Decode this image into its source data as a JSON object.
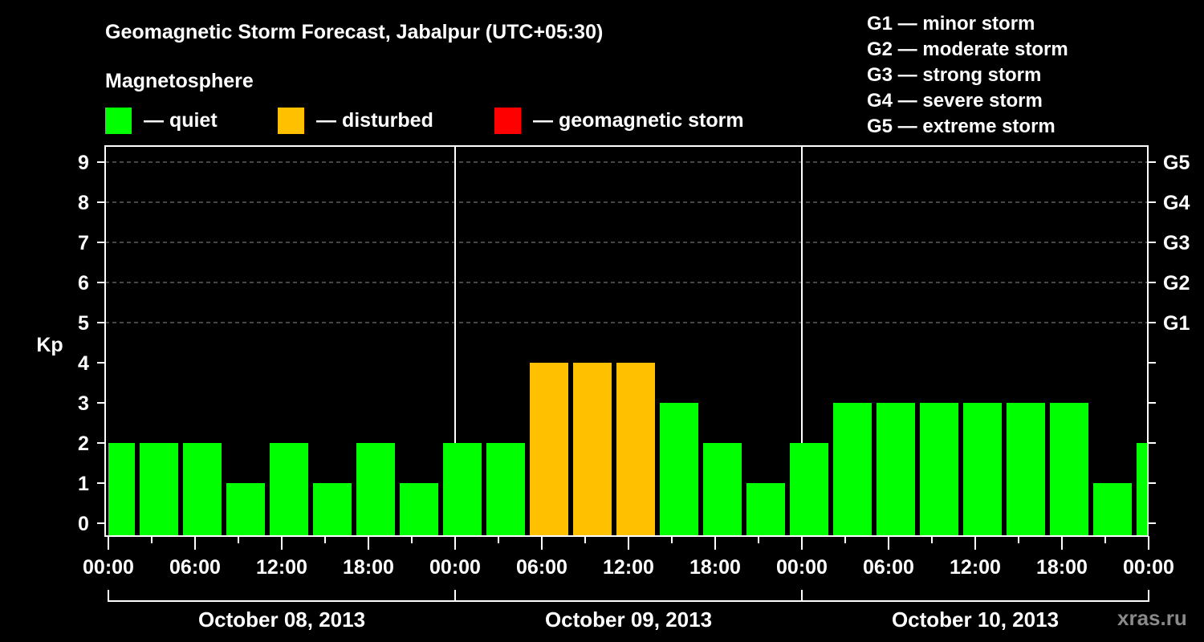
{
  "header": {
    "title": "Geomagnetic Storm Forecast, Jabalpur (UTC+05:30)",
    "subtitle": "Magnetosphere"
  },
  "legend": {
    "items": [
      {
        "label": "— quiet",
        "color": "#00ff00"
      },
      {
        "label": "— disturbed",
        "color": "#ffc000"
      },
      {
        "label": "— geomagnetic storm",
        "color": "#ff0000"
      }
    ]
  },
  "storm_scale": {
    "items": [
      "G1 — minor storm",
      "G2 — moderate storm",
      "G3 — strong storm",
      "G4 — severe storm",
      "G5 — extreme storm"
    ]
  },
  "watermark": "xras.ru",
  "chart_data": {
    "type": "bar",
    "title": "Geomagnetic Storm Forecast, Jabalpur (UTC+05:30)",
    "xlabel": "",
    "ylabel": "Kp",
    "ylim": [
      0,
      9
    ],
    "yticks": [
      0,
      1,
      2,
      3,
      4,
      5,
      6,
      7,
      8,
      9
    ],
    "right_axis_labels": {
      "5": "G1",
      "6": "G2",
      "7": "G3",
      "8": "G4",
      "9": "G5"
    },
    "grid": "dashed horizontal at Kp 5-9",
    "x_tick_labels": [
      "00:00",
      "06:00",
      "12:00",
      "18:00",
      "00:00",
      "06:00",
      "12:00",
      "18:00",
      "00:00",
      "06:00",
      "12:00",
      "18:00",
      "00:00"
    ],
    "days": [
      "October 08, 2013",
      "October 09, 2013",
      "October 10, 2013"
    ],
    "bar_interval_hours": 3,
    "first_bar_start": "October 07, 2013 23:30 (partially clipped)",
    "categories": [
      "Oct 08 ~00:00",
      "Oct 08 ~02:30",
      "Oct 08 ~05:30",
      "Oct 08 ~08:30",
      "Oct 08 ~11:30",
      "Oct 08 ~14:30",
      "Oct 08 ~17:30",
      "Oct 08 ~20:30",
      "Oct 08 ~23:30",
      "Oct 09 ~02:30",
      "Oct 09 ~05:30",
      "Oct 09 ~08:30",
      "Oct 09 ~11:30",
      "Oct 09 ~14:30",
      "Oct 09 ~17:30",
      "Oct 09 ~20:30",
      "Oct 09 ~23:30",
      "Oct 10 ~02:30",
      "Oct 10 ~05:30",
      "Oct 10 ~08:30",
      "Oct 10 ~11:30",
      "Oct 10 ~14:30",
      "Oct 10 ~17:30",
      "Oct 10 ~20:30",
      "Oct 10 ~23:30"
    ],
    "values": [
      2,
      2,
      2,
      1,
      2,
      1,
      2,
      1,
      2,
      2,
      4,
      4,
      4,
      3,
      2,
      1,
      2,
      3,
      3,
      3,
      3,
      3,
      3,
      1,
      2
    ],
    "colors": [
      "quiet",
      "quiet",
      "quiet",
      "quiet",
      "quiet",
      "quiet",
      "quiet",
      "quiet",
      "quiet",
      "quiet",
      "disturbed",
      "disturbed",
      "disturbed",
      "quiet",
      "quiet",
      "quiet",
      "quiet",
      "quiet",
      "quiet",
      "quiet",
      "quiet",
      "quiet",
      "quiet",
      "quiet",
      "quiet"
    ],
    "legend": [
      "quiet",
      "disturbed",
      "geomagnetic storm"
    ],
    "status_colors": {
      "quiet": "#00ff00",
      "disturbed": "#ffc000",
      "storm": "#ff0000"
    }
  }
}
